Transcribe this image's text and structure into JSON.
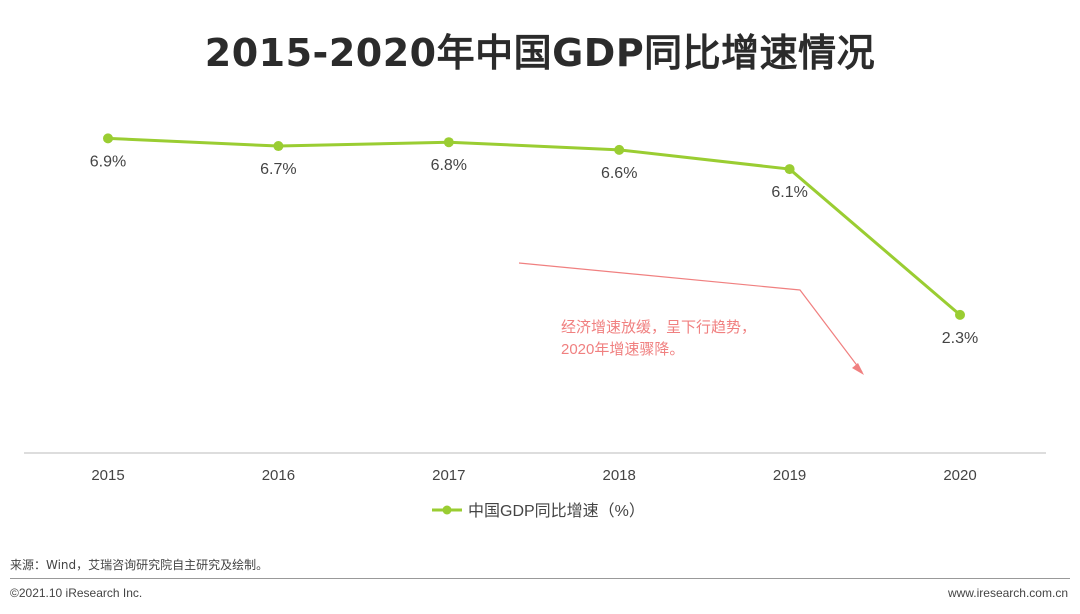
{
  "chart_data": {
    "type": "line",
    "title": "2015-2020年中国GDP同比增速情况",
    "categories": [
      "2015",
      "2016",
      "2017",
      "2018",
      "2019",
      "2020"
    ],
    "series": [
      {
        "name": "中国GDP同比增速（%）",
        "values": [
          6.9,
          6.7,
          6.8,
          6.6,
          6.1,
          2.3
        ],
        "labels": [
          "6.9%",
          "6.7%",
          "6.8%",
          "6.6%",
          "6.1%",
          "2.3%"
        ]
      }
    ],
    "ylim": [
      -1.3,
      7.9
    ],
    "grid": false,
    "legend": "bottom-center",
    "annotation": {
      "line1": "经济增速放缓，呈下行趋势，",
      "line2": "2020年增速骤降。"
    },
    "colors": {
      "series": "#9ACD32",
      "annotation": "#F08080",
      "axis": "#BBBBBB"
    }
  },
  "footer": {
    "source": "来源：Wind，艾瑞咨询研究院自主研究及绘制。",
    "copyright": "©2021.10 iResearch Inc.",
    "site": "www.iresearch.com.cn"
  }
}
